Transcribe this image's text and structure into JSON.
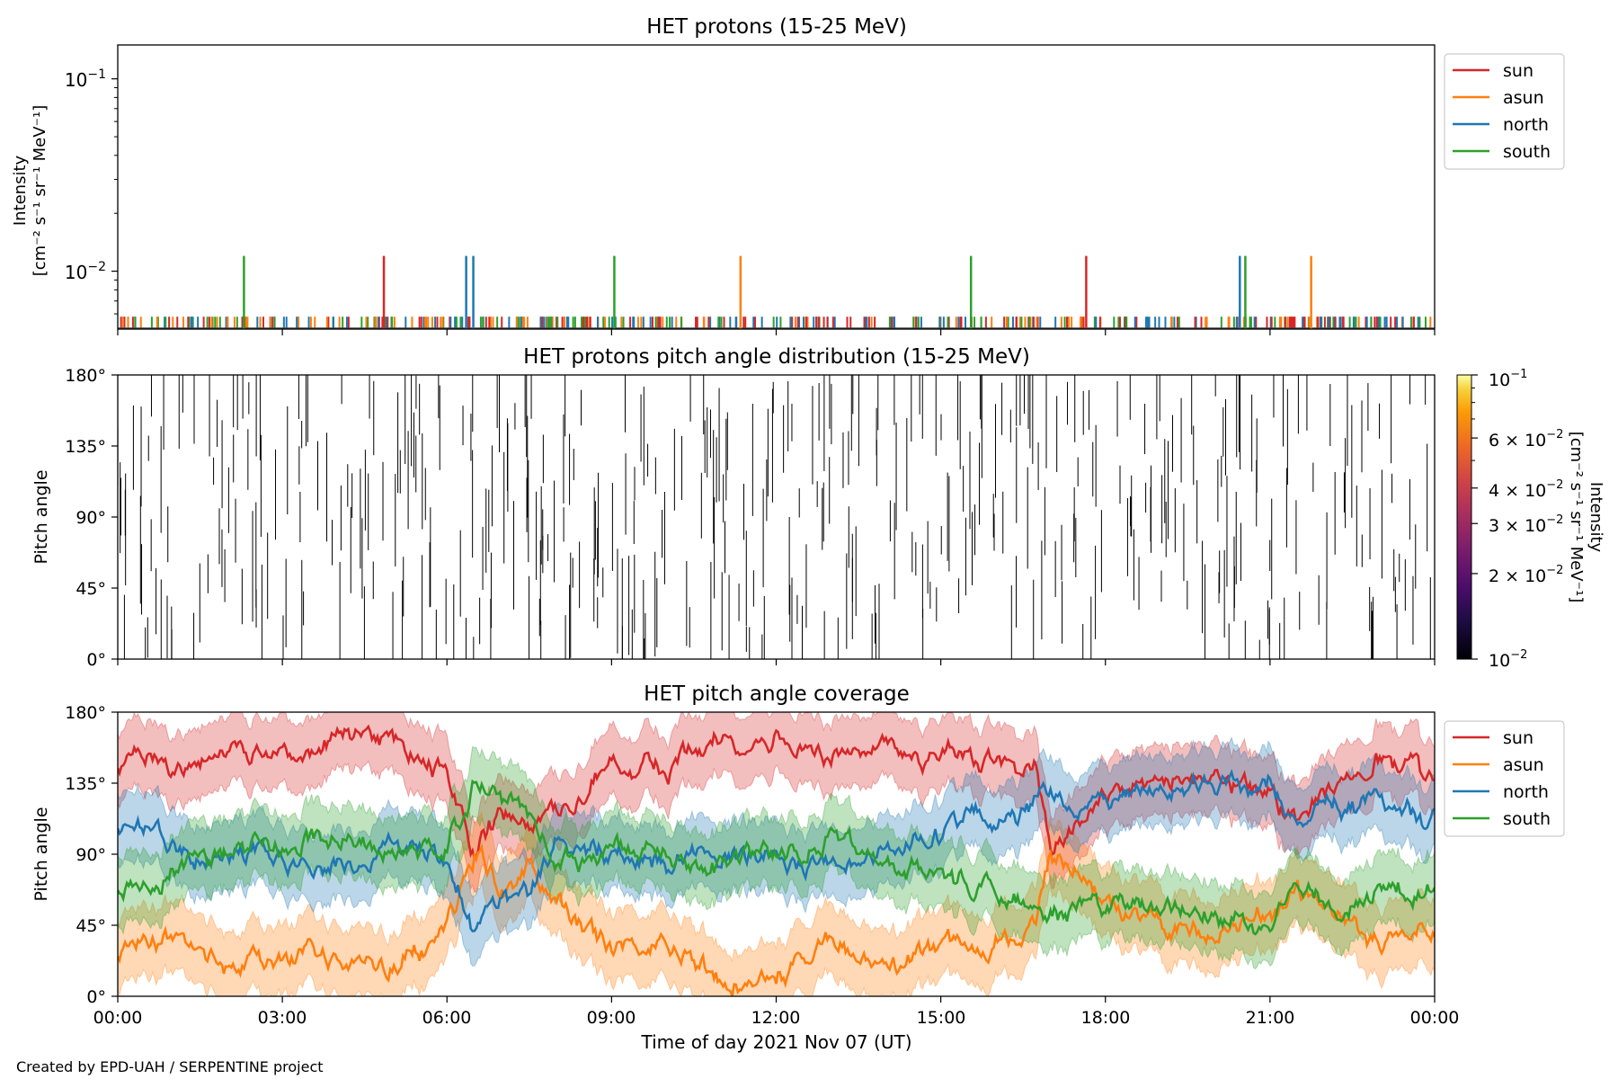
{
  "footer": {
    "credit": "Created by EPD-UAH / SERPENTINE project"
  },
  "chart_data": [
    {
      "type": "line",
      "title": "HET protons (15-25 MeV)",
      "ylabel_line1": "Intensity",
      "ylabel_line2": "[cm⁻² s⁻¹ sr⁻¹ MeV⁻¹]",
      "yscale": "log",
      "ylim": [
        0.005,
        0.15
      ],
      "ytick_labels": [
        {
          "base": "10",
          "exp": "−1",
          "value": 0.1
        },
        {
          "base": "10",
          "exp": "−2",
          "value": 0.01
        }
      ],
      "legend_placement": "outside-top-right",
      "colors": {
        "sun": "#d62728",
        "asun": "#ff7f0e",
        "north": "#1f77b4",
        "south": "#2ca02c"
      },
      "series": [
        {
          "name": "sun",
          "spikes_hours": [
            4.85,
            17.65
          ],
          "spike_value": 0.012
        },
        {
          "name": "asun",
          "spikes_hours": [
            11.35,
            21.75
          ],
          "spike_value": 0.012
        },
        {
          "name": "north",
          "spikes_hours": [
            6.35,
            6.48,
            20.45
          ],
          "spike_value": 0.012
        },
        {
          "name": "south",
          "spikes_hours": [
            2.3,
            9.05,
            15.55,
            20.55
          ],
          "spike_value": 0.012
        }
      ],
      "baseline_value": 0.0058
    },
    {
      "type": "heatmap",
      "title": "HET protons pitch angle distribution (15-25 MeV)",
      "ylabel": "Pitch angle",
      "ylim": [
        0,
        180
      ],
      "ytick_labels": [
        "0°",
        "45°",
        "90°",
        "135°",
        "180°"
      ],
      "colorbar": {
        "label_line1": "Intensity",
        "label_line2": "[cm⁻² s⁻¹ sr⁻¹ MeV⁻¹]",
        "range": [
          0.01,
          0.1
        ],
        "scale": "log",
        "tick_labels": [
          {
            "coef": "",
            "base": "10",
            "exp": "−1",
            "value": 0.1
          },
          {
            "coef": "6 × ",
            "base": "10",
            "exp": "−2",
            "value": 0.06
          },
          {
            "coef": "4 × ",
            "base": "10",
            "exp": "−2",
            "value": 0.04
          },
          {
            "coef": "3 × ",
            "base": "10",
            "exp": "−2",
            "value": 0.03
          },
          {
            "coef": "2 × ",
            "base": "10",
            "exp": "−2",
            "value": 0.02
          },
          {
            "coef": "",
            "base": "10",
            "exp": "−2",
            "value": 0.01
          }
        ]
      }
    },
    {
      "type": "area",
      "title": "HET pitch angle coverage",
      "ylabel": "Pitch angle",
      "xlabel": "Time of day 2021 Nov 07 (UT)",
      "ylim": [
        0,
        180
      ],
      "xlim_hours": [
        0,
        24
      ],
      "ytick_labels": [
        "0°",
        "45°",
        "90°",
        "135°",
        "180°"
      ],
      "xtick_labels": [
        "00:00",
        "03:00",
        "06:00",
        "09:00",
        "12:00",
        "15:00",
        "18:00",
        "21:00",
        "00:00"
      ],
      "legend_placement": "outside-top-right",
      "band_halfwidth_deg": 22,
      "series": [
        {
          "name": "sun",
          "color": "#d62728",
          "x": [
            0,
            1,
            2,
            3,
            4,
            5,
            6,
            6.5,
            7,
            7.5,
            8,
            9,
            10,
            11,
            12,
            13,
            14,
            15,
            16,
            16.7,
            17,
            17.5,
            18,
            19,
            20,
            21,
            21.5,
            22,
            23,
            24
          ],
          "y": [
            150,
            145,
            160,
            155,
            160,
            160,
            140,
            95,
            115,
            105,
            120,
            150,
            145,
            165,
            165,
            150,
            160,
            150,
            145,
            140,
            95,
            105,
            120,
            135,
            140,
            120,
            115,
            125,
            150,
            130
          ]
        },
        {
          "name": "asun",
          "color": "#ff7f0e",
          "x": [
            0,
            1,
            2,
            3,
            4,
            5,
            6,
            6.5,
            7,
            7.5,
            8,
            9,
            10,
            11,
            12,
            13,
            14,
            15,
            16,
            16.7,
            17,
            17.5,
            18,
            19,
            20,
            21,
            21.5,
            22,
            23,
            24
          ],
          "y": [
            30,
            35,
            20,
            25,
            20,
            20,
            40,
            85,
            65,
            75,
            60,
            30,
            35,
            15,
            15,
            30,
            20,
            30,
            35,
            40,
            85,
            75,
            60,
            45,
            40,
            60,
            65,
            55,
            30,
            50
          ]
        },
        {
          "name": "north",
          "color": "#1f77b4",
          "x": [
            0,
            1,
            2,
            3,
            4,
            5,
            6,
            6.5,
            7,
            7.5,
            8,
            9,
            10,
            11,
            12,
            13,
            14,
            15,
            16,
            16.7,
            17,
            17.5,
            18,
            19,
            20,
            21,
            21.5,
            22,
            23,
            24
          ],
          "y": [
            110,
            95,
            90,
            85,
            80,
            95,
            85,
            45,
            60,
            70,
            95,
            90,
            85,
            95,
            90,
            85,
            95,
            100,
            110,
            120,
            130,
            120,
            125,
            130,
            125,
            135,
            105,
            125,
            115,
            110
          ]
        },
        {
          "name": "south",
          "color": "#2ca02c",
          "x": [
            0,
            1,
            2,
            3,
            4,
            5,
            6,
            6.5,
            7,
            7.5,
            8,
            9,
            10,
            11,
            12,
            13,
            14,
            15,
            16,
            16.7,
            17,
            17.5,
            18,
            19,
            20,
            21,
            21.5,
            22,
            23,
            24
          ],
          "y": [
            70,
            85,
            90,
            95,
            100,
            85,
            95,
            135,
            120,
            110,
            85,
            90,
            95,
            85,
            90,
            95,
            85,
            80,
            70,
            60,
            50,
            60,
            55,
            50,
            55,
            45,
            75,
            55,
            65,
            70
          ]
        }
      ]
    }
  ]
}
